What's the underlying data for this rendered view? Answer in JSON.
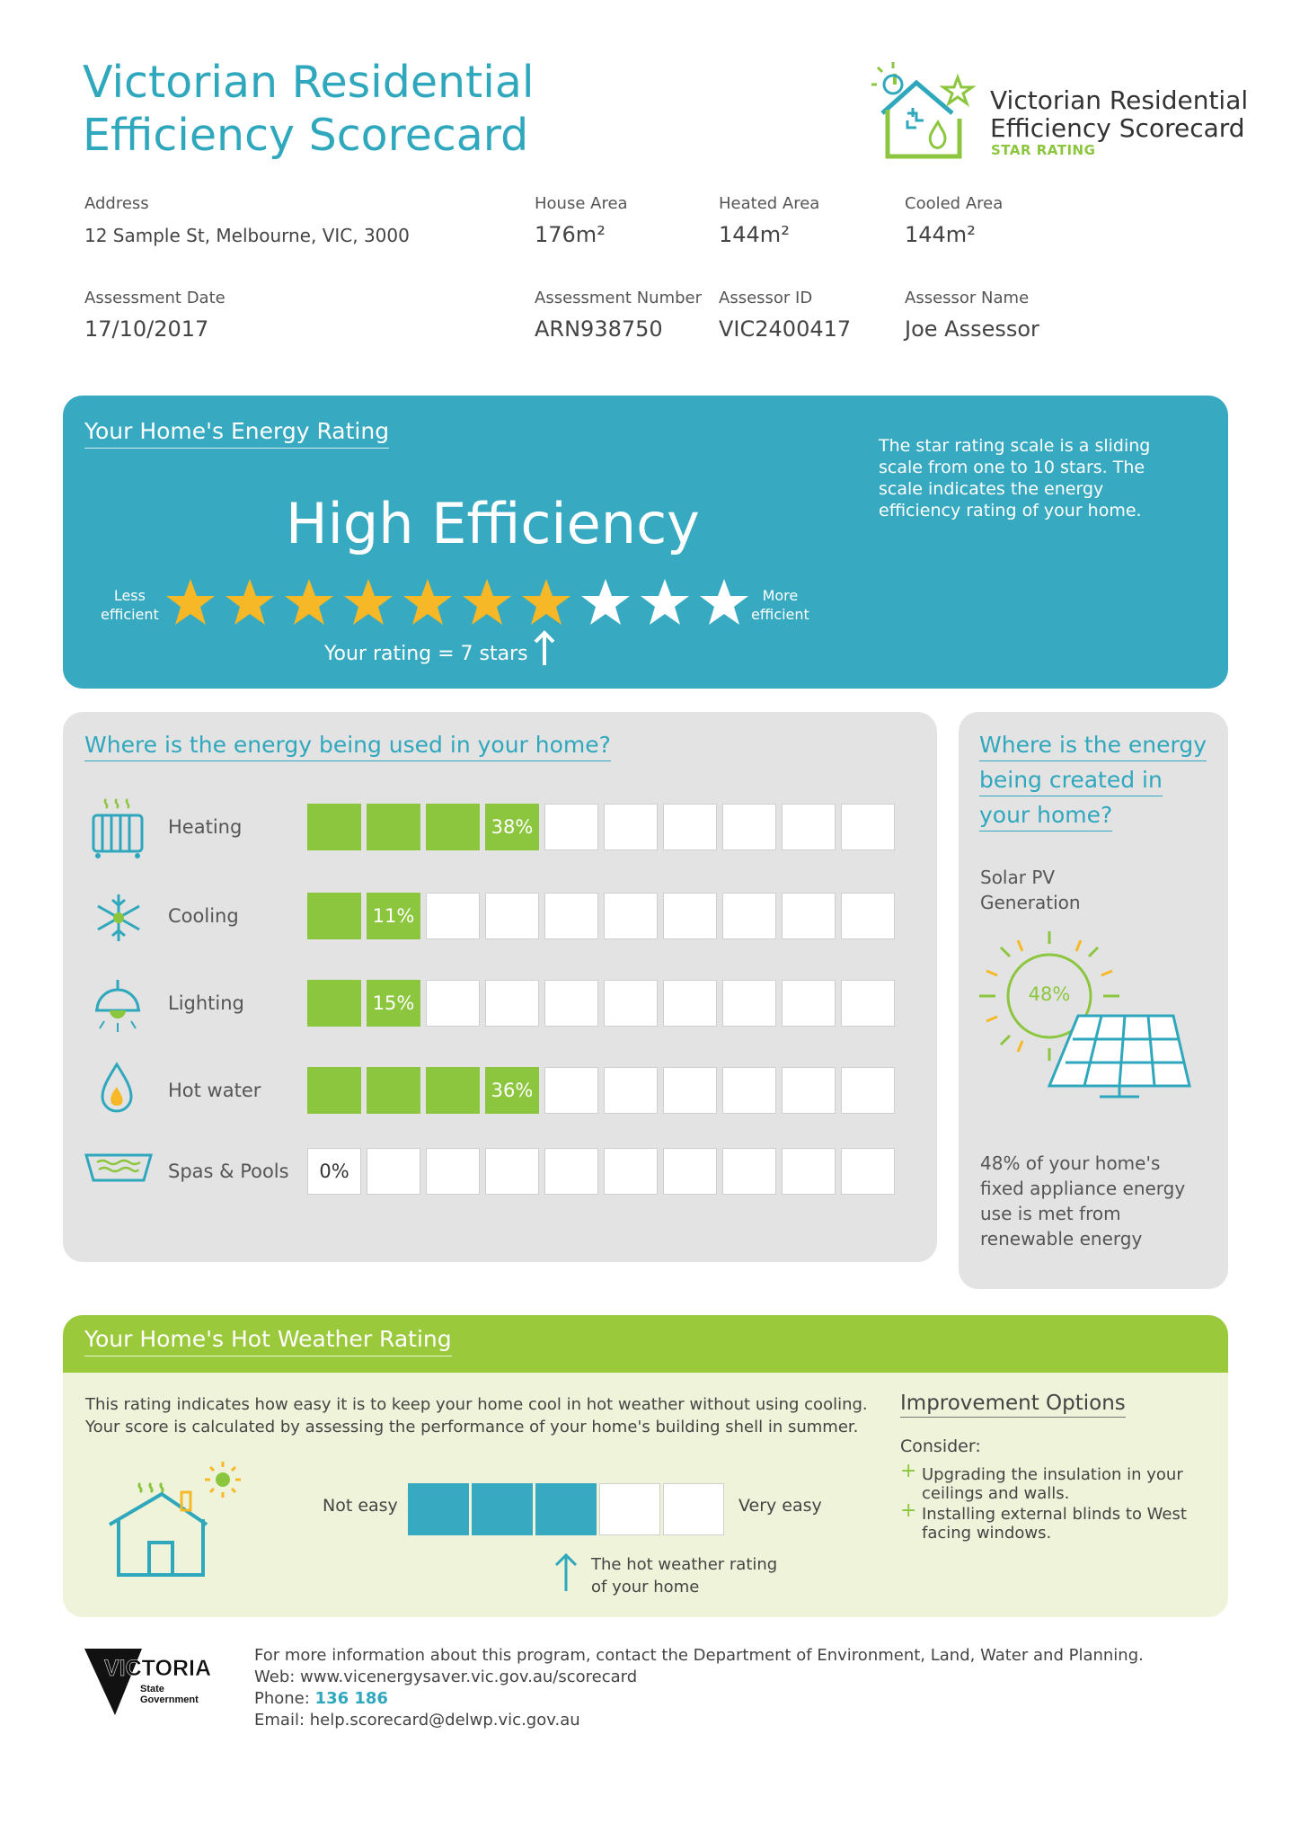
{
  "header": {
    "title_line1": "Victorian Residential",
    "title_line2": "Efficiency Scorecard",
    "logo_line1": "Victorian Residential",
    "logo_line2": "Efficiency Scorecard",
    "logo_sub": "STAR RATING"
  },
  "details": {
    "address_label": "Address",
    "address": "12 Sample St, Melbourne, VIC, 3000",
    "house_area_label": "House Area",
    "house_area": "176m²",
    "heated_area_label": "Heated Area",
    "heated_area": "144m²",
    "cooled_area_label": "Cooled Area",
    "cooled_area": "144m²",
    "assessment_date_label": "Assessment Date",
    "assessment_date": "17/10/2017",
    "assessment_number_label": "Assessment Number",
    "assessment_number": "ARN938750",
    "assessor_id_label": "Assessor ID",
    "assessor_id": "VIC2400417",
    "assessor_name_label": "Assessor Name",
    "assessor_name": "Joe Assessor"
  },
  "energy_rating": {
    "heading": "Your Home's Energy Rating",
    "level": "High Efficiency",
    "scale_note": "The star rating scale is a sliding scale from one to 10 stars. The scale indicates the energy efficiency rating of your home.",
    "less_line1": "Less",
    "less_line2": "efficient",
    "more_line1": "More",
    "more_line2": "efficient",
    "rating_text": "Your  rating = 7 stars",
    "stars_filled": 7,
    "stars_total": 10,
    "colors": {
      "panel": "#37a9c0",
      "star_filled": "#f6b826",
      "star_empty": "#ffffff"
    }
  },
  "energy_use": {
    "heading": "Where is the energy being used in your home?",
    "total_cells": 10,
    "items": [
      {
        "label": "Heating",
        "icon": "heater-icon",
        "percent": 38,
        "percent_label": "38%",
        "filled_cells": 3
      },
      {
        "label": "Cooling",
        "icon": "snowflake-icon",
        "percent": 11,
        "percent_label": "11%",
        "filled_cells": 1
      },
      {
        "label": "Lighting",
        "icon": "lamp-icon",
        "percent": 15,
        "percent_label": "15%",
        "filled_cells": 1
      },
      {
        "label": "Hot water",
        "icon": "water-flame-icon",
        "percent": 36,
        "percent_label": "36%",
        "filled_cells": 3
      },
      {
        "label": "Spas & Pools",
        "icon": "pool-icon",
        "percent": 0,
        "percent_label": "0%",
        "filled_cells": 0
      }
    ],
    "colors": {
      "bar": "#8cc63f"
    }
  },
  "energy_created": {
    "heading_line1": "Where is the energy",
    "heading_line2": "being created in",
    "heading_line3": "your home?",
    "source_line1": "Solar PV",
    "source_line2": "Generation",
    "percent_label": "48%",
    "description": "48% of your home's fixed appliance energy use is met from renewable energy"
  },
  "hot_weather": {
    "heading": "Your Home's Hot Weather Rating",
    "text_line1": "This rating indicates how easy it is to keep your home cool in hot weather without using cooling.",
    "text_line2": "Your score is calculated by assessing the performance of your home's building shell in summer.",
    "not_easy": "Not easy",
    "very_easy": "Very easy",
    "filled_cells": 3,
    "total_cells": 5,
    "pointer_line1": "The hot weather rating",
    "pointer_line2": "of your home",
    "improvement_heading": "Improvement Options",
    "consider": "Consider:",
    "options": [
      "Upgrading the insulation in your ceilings and walls.",
      "Installing external blinds to West facing windows."
    ]
  },
  "footer": {
    "logo_text": "VICTORIA",
    "logo_sub1": "State",
    "logo_sub2": "Government",
    "info": "For more information about this program, contact the Department of Environment, Land, Water and Planning.",
    "web": "Web: www.vicenergysaver.vic.gov.au/scorecard",
    "phone_label": "Phone: ",
    "phone": "136 186",
    "email": "Email: help.scorecard@delwp.vic.gov.au"
  }
}
